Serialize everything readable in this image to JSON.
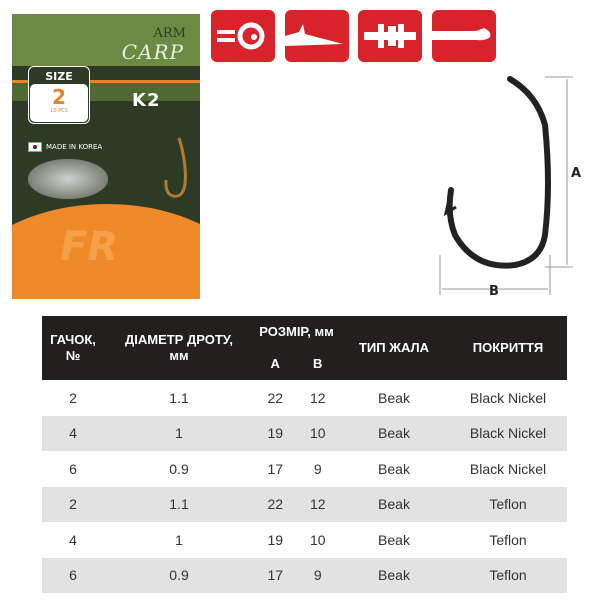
{
  "package": {
    "brand_line1": "ARM",
    "brand_line2": "CARP",
    "size_label": "SIZE",
    "size_value": "2",
    "pcs": "10 PCS",
    "model": "K2",
    "origin": "MADE IN KOREA",
    "logo_text": "FR"
  },
  "feature_icons": [
    "eyed-hook-icon",
    "beak-point-icon",
    "barbless-icon",
    "needle-point-icon"
  ],
  "diagram": {
    "label_a": "A",
    "label_b": "B"
  },
  "table": {
    "headers": {
      "hook": "ГАЧОК, №",
      "diameter": "ДІАМЕТР ДРОТУ, мм",
      "size": "РОЗМІР, мм",
      "a": "A",
      "b": "B",
      "point": "ТИП ЖАЛА",
      "coating": "ПОКРИТТЯ"
    },
    "rows": [
      [
        "2",
        "1.1",
        "22",
        "12",
        "Beak",
        "Black Nickel"
      ],
      [
        "4",
        "1",
        "19",
        "10",
        "Beak",
        "Black Nickel"
      ],
      [
        "6",
        "0.9",
        "17",
        "9",
        "Beak",
        "Black Nickel"
      ],
      [
        "2",
        "1.1",
        "22",
        "12",
        "Beak",
        "Teflon"
      ],
      [
        "4",
        "1",
        "19",
        "10",
        "Beak",
        "Teflon"
      ],
      [
        "6",
        "0.9",
        "17",
        "9",
        "Beak",
        "Teflon"
      ]
    ]
  },
  "colors": {
    "accent": "#d8232a",
    "orange": "#ef8a2a",
    "header_bg": "#221f1f",
    "alt_row": "#e2e2e2"
  }
}
